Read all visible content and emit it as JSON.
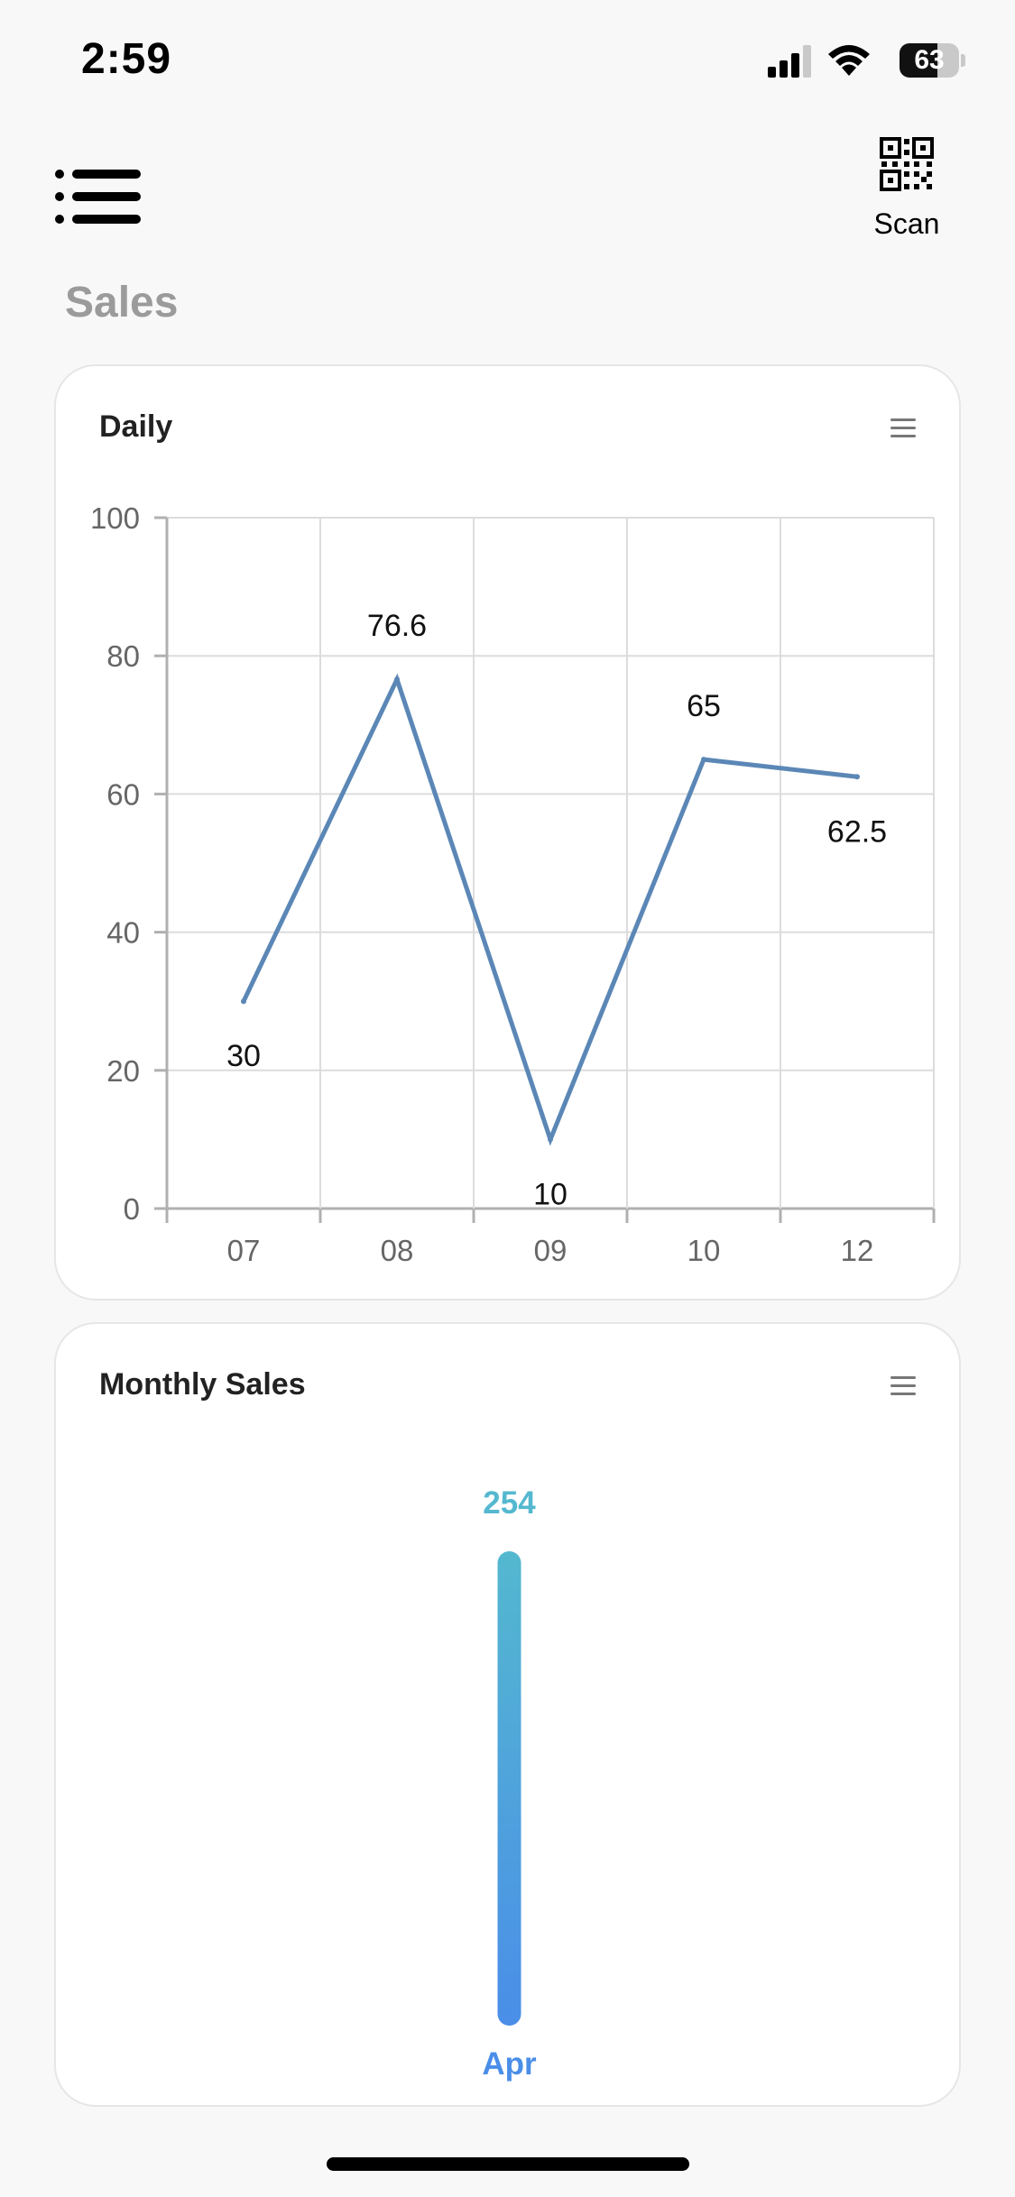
{
  "status_bar": {
    "time": "2:59",
    "battery_percent": 63,
    "battery_label": "63",
    "icons": [
      "cellular-signal-icon",
      "wifi-icon",
      "battery-icon"
    ]
  },
  "header": {
    "menu_icon": "list-menu-icon",
    "scan_icon": "qr-code-icon",
    "scan_label": "Scan"
  },
  "page": {
    "title": "Sales"
  },
  "cards": {
    "daily": {
      "title": "Daily",
      "menu_icon": "hamburger-icon"
    },
    "monthly": {
      "title": "Monthly Sales",
      "menu_icon": "hamburger-icon"
    }
  },
  "colors": {
    "line": "#5b87b6",
    "bar_top": "#54b8cf",
    "bar_bottom": "#4a8ee8",
    "bar_value": "#54b8cf",
    "bar_category": "#4a8ee8",
    "grid": "#dcdcdc",
    "axis": "#b0b0b0",
    "tick_text": "#666666"
  },
  "chart_data": [
    {
      "type": "line",
      "title": "Daily",
      "categories": [
        "07",
        "08",
        "09",
        "10",
        "12"
      ],
      "values": [
        30,
        76.6,
        10,
        65,
        62.5
      ],
      "data_labels": [
        "30",
        "76.6",
        "10",
        "65",
        "62.5"
      ],
      "ylim": [
        0,
        100
      ],
      "yticks": [
        0,
        20,
        40,
        60,
        80,
        100
      ],
      "ytick_labels": [
        "0",
        "20",
        "40",
        "60",
        "80",
        "100"
      ],
      "grid": true
    },
    {
      "type": "bar",
      "title": "Monthly Sales",
      "categories": [
        "Apr"
      ],
      "values": [
        254
      ],
      "data_labels": [
        "254"
      ],
      "grid": false
    }
  ]
}
